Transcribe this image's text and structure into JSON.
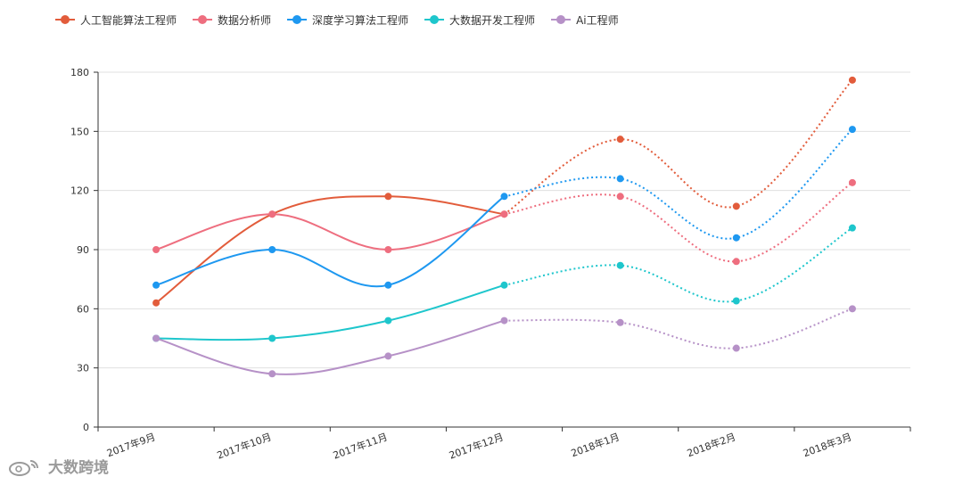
{
  "chart_data": {
    "type": "line",
    "categories": [
      "2017年9月",
      "2017年10月",
      "2017年11月",
      "2017年12月",
      "2018年1月",
      "2018年2月",
      "2018年3月"
    ],
    "ylim": [
      0,
      180
    ],
    "yticks": [
      0,
      30,
      60,
      90,
      120,
      150,
      180
    ],
    "grid": true,
    "legend_position": "top-left",
    "solid_through_index": 3,
    "series": [
      {
        "name": "人工智能算法工程师",
        "color": "#e25c3b",
        "values": [
          63,
          108,
          117,
          108,
          146,
          112,
          176
        ]
      },
      {
        "name": "数据分析师",
        "color": "#ee6e7f",
        "values": [
          90,
          108,
          90,
          108,
          117,
          84,
          124
        ]
      },
      {
        "name": "深度学习算法工程师",
        "color": "#1e98f0",
        "values": [
          72,
          90,
          72,
          117,
          126,
          96,
          151
        ]
      },
      {
        "name": "大数据开发工程师",
        "color": "#1ec6cc",
        "values": [
          45,
          45,
          54,
          72,
          82,
          64,
          101
        ]
      },
      {
        "name": "Ai工程师",
        "color": "#b691c7",
        "values": [
          45,
          27,
          36,
          54,
          53,
          40,
          60
        ]
      }
    ]
  },
  "footer": {
    "source": "大数跨境",
    "icon": "weibo-icon"
  }
}
